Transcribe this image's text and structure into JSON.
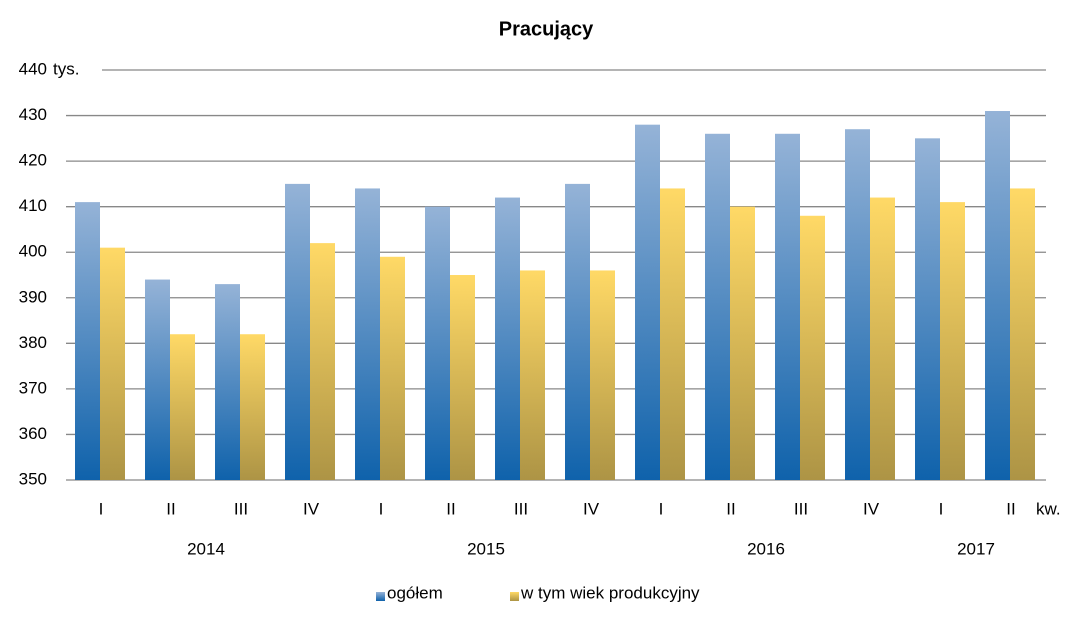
{
  "chart_data": {
    "type": "bar",
    "title": "Pracujący",
    "y_unit": "tys.",
    "x_unit": "kw.",
    "categories": [
      "I",
      "II",
      "III",
      "IV",
      "I",
      "II",
      "III",
      "IV",
      "I",
      "II",
      "III",
      "IV",
      "I",
      "II"
    ],
    "category_groups": [
      {
        "name": "2014",
        "count": 4
      },
      {
        "name": "2015",
        "count": 4
      },
      {
        "name": "2016",
        "count": 4
      },
      {
        "name": "2017",
        "count": 2
      }
    ],
    "series": [
      {
        "name": "ogółem",
        "color": "#95b3d7",
        "values": [
          411,
          394,
          393,
          415,
          414,
          410,
          412,
          415,
          428,
          426,
          426,
          427,
          425,
          431
        ]
      },
      {
        "name": "w tym wiek produkcyjny",
        "color": "#ffd966",
        "values": [
          401,
          382,
          382,
          402,
          399,
          395,
          396,
          396,
          414,
          410,
          408,
          412,
          411,
          414
        ]
      }
    ],
    "ylim": [
      350,
      440
    ],
    "yticks": [
      350,
      360,
      370,
      380,
      390,
      400,
      410,
      420,
      430,
      440
    ],
    "grid": true,
    "legend": "bottom"
  }
}
